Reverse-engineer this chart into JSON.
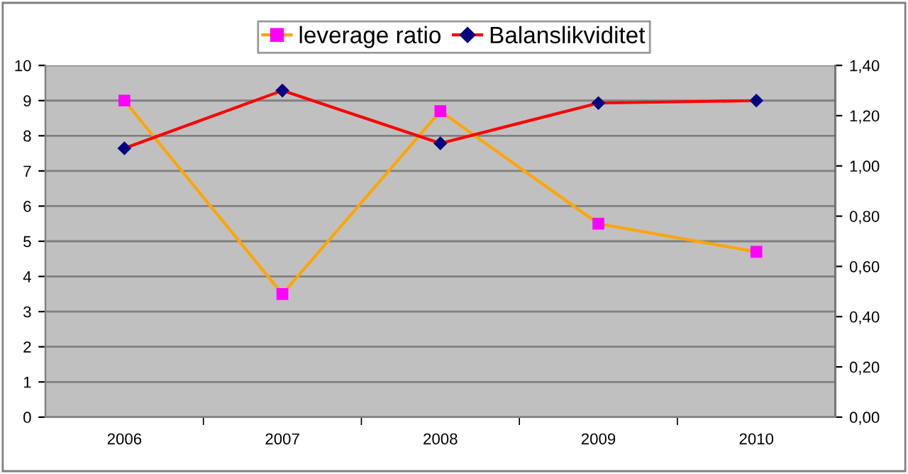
{
  "chart_data": {
    "type": "line",
    "categories": [
      "2006",
      "2007",
      "2008",
      "2009",
      "2010"
    ],
    "series": [
      {
        "name": "leverage ratio",
        "color": "#ffa500",
        "colors": [
          "#ff00ff",
          "#ff00ff",
          "#ff00ff",
          "#ff00ff",
          "#ff00ff"
        ],
        "marker": "square",
        "values": [
          9,
          3.5,
          8.7,
          5.5,
          4.7
        ]
      },
      {
        "name": "Balanslikviditet",
        "color": "#ff0000",
        "colors": [
          "#000080",
          "#000080",
          "#000080",
          "#000080",
          "#000080"
        ],
        "marker": "diamond",
        "axis": "y2",
        "values": [
          1.07,
          1.3,
          1.09,
          1.25,
          1.26
        ]
      }
    ],
    "ylim": [
      0,
      10
    ],
    "yticks": [
      0,
      1,
      2,
      3,
      4,
      5,
      6,
      7,
      8,
      9,
      10
    ],
    "y2lim": [
      0,
      1.4
    ],
    "y2ticks": [
      {
        "value": 0,
        "label": "0,00"
      },
      {
        "value": 0.2,
        "label": "0,20"
      },
      {
        "value": 0.4,
        "label": "0,40"
      },
      {
        "value": 0.6,
        "label": "0,60"
      },
      {
        "value": 0.8,
        "label": "0,80"
      },
      {
        "value": 1.0,
        "label": "1,00"
      },
      {
        "value": 1.2,
        "label": "1,20"
      },
      {
        "value": 1.4,
        "label": "1,40"
      }
    ],
    "grid": "y",
    "legend": "top"
  }
}
